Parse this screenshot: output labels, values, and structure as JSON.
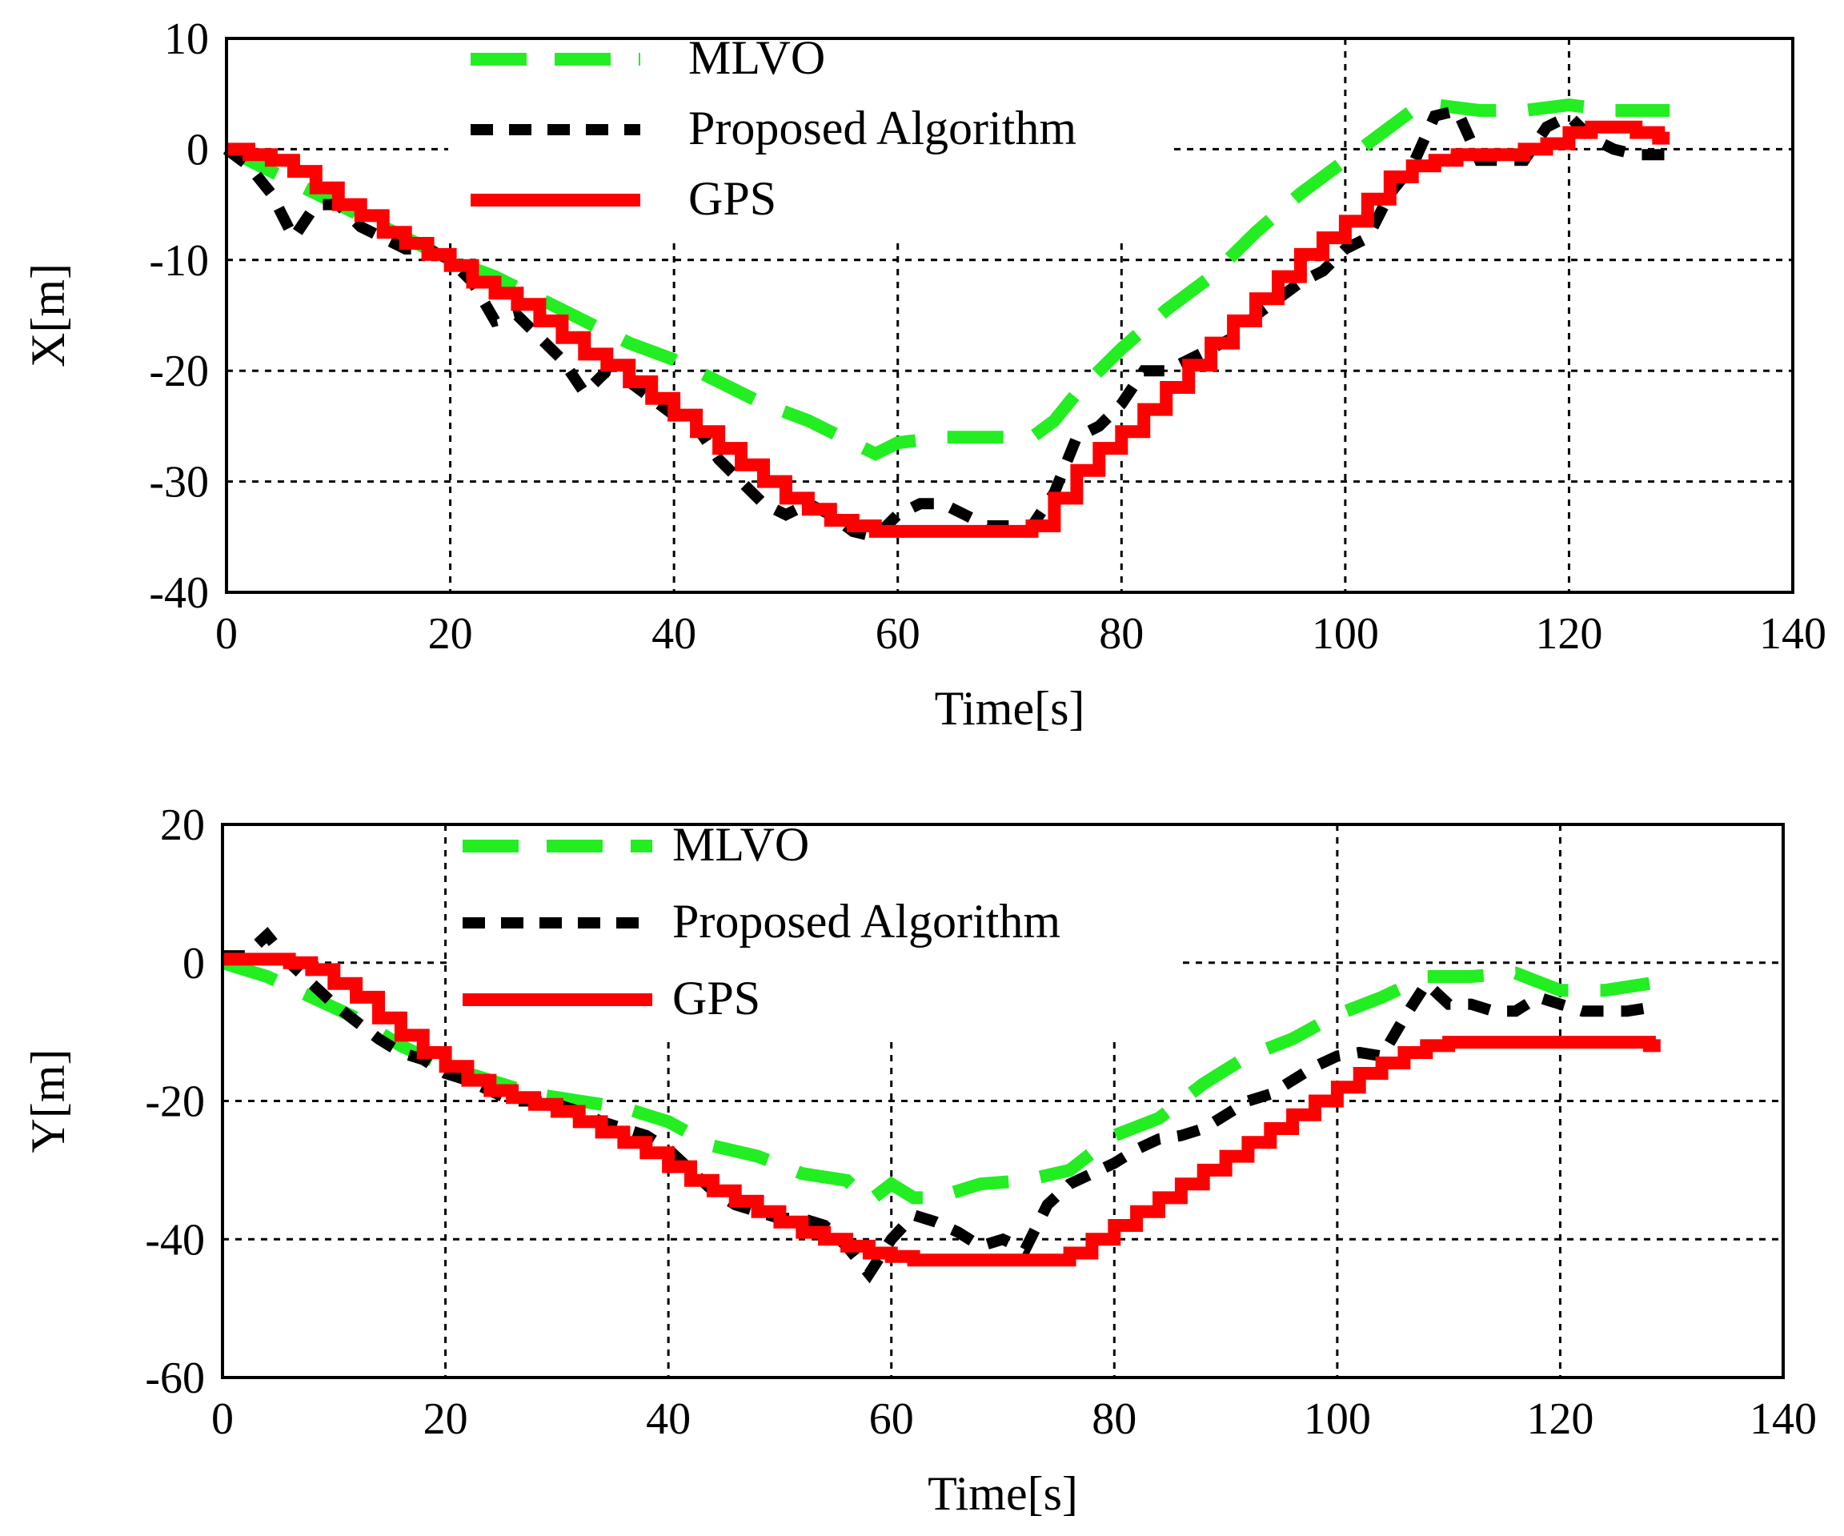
{
  "chart_data": [
    {
      "type": "line",
      "xlabel": "Time[s]",
      "ylabel": "X[m]",
      "xlim": [
        0,
        140
      ],
      "ylim": [
        -40,
        10
      ],
      "xticks": [
        "0",
        "20",
        "40",
        "60",
        "80",
        "100",
        "120",
        "140"
      ],
      "yticks": [
        "10",
        "0",
        "-10",
        "-20",
        "-30",
        "-40"
      ],
      "grid": true,
      "legend_position": "top-left",
      "series": [
        {
          "name": "MLVO",
          "style": "dashed",
          "color": "#22ee22",
          "x": [
            0,
            4,
            8,
            12,
            16,
            20,
            24,
            28,
            32,
            36,
            40,
            44,
            48,
            52,
            56,
            58,
            60,
            64,
            68,
            72,
            74,
            76,
            80,
            84,
            88,
            92,
            96,
            100,
            102,
            104,
            106,
            108,
            112,
            116,
            120,
            124,
            129
          ],
          "y": [
            0,
            -2,
            -4,
            -6,
            -8,
            -10,
            -11.5,
            -13.5,
            -15.5,
            -17.5,
            -19,
            -21,
            -23,
            -24.5,
            -26.5,
            -27.5,
            -26.5,
            -26,
            -26,
            -26,
            -24.5,
            -22,
            -18,
            -14.5,
            -11.5,
            -7.5,
            -4,
            -1,
            0.5,
            2,
            3.5,
            4,
            3.5,
            3.5,
            4,
            3.5,
            3.5
          ]
        },
        {
          "name": "Proposed Algorithm",
          "style": "dotted",
          "color": "#000000",
          "x": [
            0,
            2,
            4,
            6,
            8,
            10,
            12,
            14,
            16,
            18,
            20,
            22,
            24,
            26,
            28,
            30,
            32,
            34,
            36,
            38,
            40,
            42,
            44,
            46,
            48,
            50,
            52,
            54,
            56,
            58,
            60,
            62,
            64,
            66,
            68,
            70,
            72,
            74,
            76,
            78,
            80,
            82,
            84,
            86,
            88,
            90,
            92,
            94,
            96,
            98,
            100,
            102,
            104,
            106,
            108,
            110,
            112,
            114,
            116,
            118,
            120,
            122,
            124,
            126,
            128,
            129
          ],
          "y": [
            0,
            -1.5,
            -4,
            -8,
            -5,
            -5,
            -7,
            -8,
            -9,
            -9,
            -10,
            -12,
            -15.5,
            -15,
            -17,
            -19,
            -22,
            -20,
            -21,
            -22.5,
            -24,
            -25,
            -28,
            -30,
            -32,
            -33,
            -32,
            -33,
            -34.5,
            -35,
            -33,
            -32,
            -32,
            -33,
            -34,
            -34,
            -34,
            -31,
            -26,
            -25,
            -23,
            -20,
            -20,
            -19,
            -18,
            -17,
            -15,
            -13.5,
            -12,
            -11,
            -9,
            -8,
            -4,
            -1.5,
            3,
            3.5,
            -1,
            -1,
            -1,
            2,
            3,
            1,
            0,
            -0.5,
            -0.5,
            -0.5
          ]
        },
        {
          "name": "GPS",
          "style": "solid-stepped",
          "color": "#ff0000",
          "x": [
            0,
            2,
            4,
            6,
            8,
            10,
            12,
            14,
            16,
            18,
            20,
            22,
            24,
            26,
            28,
            30,
            32,
            34,
            36,
            38,
            40,
            42,
            44,
            46,
            48,
            50,
            52,
            54,
            56,
            58,
            60,
            62,
            64,
            66,
            68,
            70,
            72,
            74,
            76,
            78,
            80,
            82,
            84,
            86,
            88,
            90,
            92,
            94,
            96,
            98,
            100,
            102,
            104,
            106,
            108,
            110,
            112,
            114,
            116,
            118,
            120,
            122,
            124,
            126,
            128,
            129
          ],
          "y": [
            0,
            -0.5,
            -1,
            -2,
            -3.5,
            -5,
            -6,
            -7.5,
            -8.5,
            -9.5,
            -10.5,
            -12,
            -13,
            -14,
            -15.5,
            -17,
            -18.5,
            -19.5,
            -21,
            -22.5,
            -24,
            -25.5,
            -27,
            -28.5,
            -30,
            -31.5,
            -32.5,
            -33.5,
            -34,
            -34.5,
            -34.5,
            -34.5,
            -34.5,
            -34.5,
            -34.5,
            -34.5,
            -34,
            -31.5,
            -29,
            -27,
            -25.5,
            -23.5,
            -21.5,
            -19.5,
            -17.5,
            -15.5,
            -13.5,
            -11.5,
            -9.5,
            -8,
            -6.5,
            -4.5,
            -2.5,
            -1.5,
            -1,
            -0.5,
            -0.5,
            -0.5,
            0,
            0.5,
            1.5,
            2,
            2,
            1.5,
            1,
            1
          ]
        }
      ]
    },
    {
      "type": "line",
      "xlabel": "Time[s]",
      "ylabel": "Y[m]",
      "xlim": [
        0,
        140
      ],
      "ylim": [
        -60,
        20
      ],
      "xticks": [
        "0",
        "20",
        "40",
        "60",
        "80",
        "100",
        "120",
        "140"
      ],
      "yticks": [
        "20",
        "0",
        "-20",
        "-40",
        "-60"
      ],
      "grid": true,
      "legend_position": "top-left",
      "series": [
        {
          "name": "MLVO",
          "style": "dashed",
          "color": "#22ee22",
          "x": [
            0,
            4,
            8,
            12,
            16,
            20,
            24,
            28,
            32,
            36,
            40,
            44,
            48,
            52,
            56,
            58,
            60,
            62,
            64,
            68,
            72,
            76,
            80,
            84,
            88,
            92,
            96,
            100,
            104,
            108,
            110,
            112,
            116,
            120,
            124,
            128
          ],
          "y": [
            0,
            -2,
            -5,
            -8,
            -12,
            -15,
            -17,
            -19,
            -20,
            -21,
            -23,
            -26.5,
            -28,
            -30.5,
            -31.5,
            -34.5,
            -32,
            -34,
            -34,
            -32,
            -31.5,
            -30,
            -25,
            -22.5,
            -17.5,
            -13.5,
            -11,
            -7.5,
            -5,
            -2,
            -2,
            -2,
            -1.5,
            -4,
            -4,
            -3
          ]
        },
        {
          "name": "Proposed Algorithm",
          "style": "dotted",
          "color": "#000000",
          "x": [
            0,
            2,
            4,
            6,
            8,
            10,
            12,
            14,
            16,
            18,
            20,
            22,
            24,
            26,
            28,
            30,
            32,
            34,
            36,
            38,
            40,
            42,
            44,
            46,
            48,
            50,
            52,
            54,
            56,
            58,
            60,
            62,
            64,
            66,
            68,
            70,
            72,
            74,
            76,
            78,
            80,
            82,
            84,
            86,
            88,
            90,
            92,
            94,
            96,
            98,
            100,
            102,
            104,
            106,
            108,
            110,
            112,
            114,
            116,
            118,
            120,
            122,
            124,
            126,
            128
          ],
          "y": [
            1,
            1,
            4,
            0,
            -3,
            -6,
            -8.5,
            -11,
            -13,
            -14,
            -16,
            -17,
            -18.5,
            -20,
            -20,
            -20.5,
            -21.5,
            -23,
            -24,
            -25,
            -27,
            -30,
            -33,
            -35,
            -36,
            -37,
            -37,
            -38,
            -41,
            -45,
            -40,
            -36.5,
            -37.5,
            -39,
            -41,
            -40,
            -41.5,
            -35,
            -32,
            -30.5,
            -29,
            -27,
            -25.5,
            -25,
            -24,
            -22,
            -20,
            -19,
            -17,
            -15,
            -13.5,
            -13,
            -13.5,
            -8,
            -3,
            -6,
            -6,
            -7,
            -7,
            -5,
            -6,
            -7,
            -7,
            -7,
            -6.5
          ]
        },
        {
          "name": "GPS",
          "style": "solid-stepped",
          "color": "#ff0000",
          "x": [
            0,
            2,
            4,
            6,
            8,
            10,
            12,
            14,
            16,
            18,
            20,
            22,
            24,
            26,
            28,
            30,
            32,
            34,
            36,
            38,
            40,
            42,
            44,
            46,
            48,
            50,
            52,
            54,
            56,
            58,
            60,
            62,
            64,
            66,
            68,
            70,
            72,
            74,
            76,
            78,
            80,
            82,
            84,
            86,
            88,
            90,
            92,
            94,
            96,
            98,
            100,
            102,
            104,
            106,
            108,
            110,
            112,
            114,
            116,
            118,
            120,
            122,
            124,
            126,
            128,
            129
          ],
          "y": [
            0.5,
            0.5,
            0.5,
            0,
            -1,
            -3,
            -5,
            -8,
            -10.5,
            -13,
            -15,
            -17,
            -18.5,
            -19.5,
            -20.5,
            -21.5,
            -23,
            -24.5,
            -26,
            -27.5,
            -29.5,
            -31.5,
            -33,
            -34.5,
            -36,
            -37.5,
            -39,
            -40,
            -41,
            -42,
            -42.5,
            -43,
            -43,
            -43,
            -43,
            -43,
            -43,
            -43,
            -42,
            -40,
            -38,
            -36,
            -34,
            -32,
            -30,
            -28,
            -26,
            -24,
            -22,
            -20,
            -18,
            -16,
            -14.5,
            -13,
            -12,
            -11.5,
            -11.5,
            -11.5,
            -11.5,
            -11.5,
            -11.5,
            -11.5,
            -11.5,
            -11.5,
            -12,
            -12
          ]
        }
      ]
    }
  ]
}
